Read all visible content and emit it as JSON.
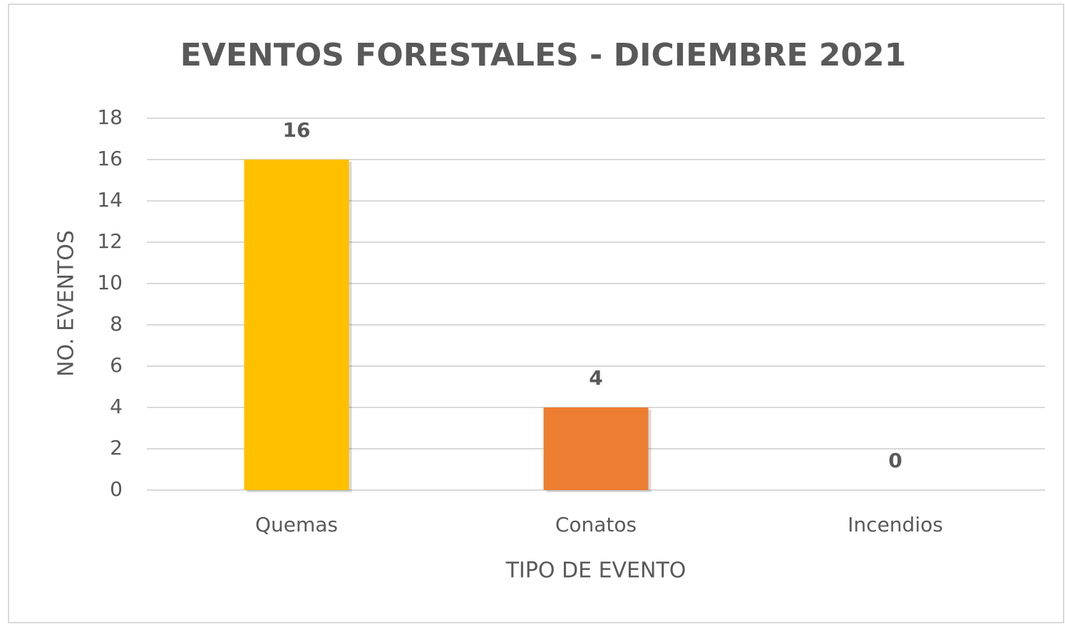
{
  "chart_data": {
    "type": "bar",
    "title": "EVENTOS FORESTALES - DICIEMBRE 2021",
    "x_label": "TIPO DE EVENTO",
    "y_label": "NO. EVENTOS",
    "categories": [
      "Quemas",
      "Conatos",
      "Incendios"
    ],
    "values": [
      16,
      4,
      0
    ],
    "colors": [
      "#ffc000",
      "#ed7d31",
      "#a5a5a5"
    ],
    "ylim": [
      0,
      18
    ],
    "yticks": [
      0,
      2,
      4,
      6,
      8,
      10,
      12,
      14,
      16,
      18
    ],
    "grid": true
  }
}
